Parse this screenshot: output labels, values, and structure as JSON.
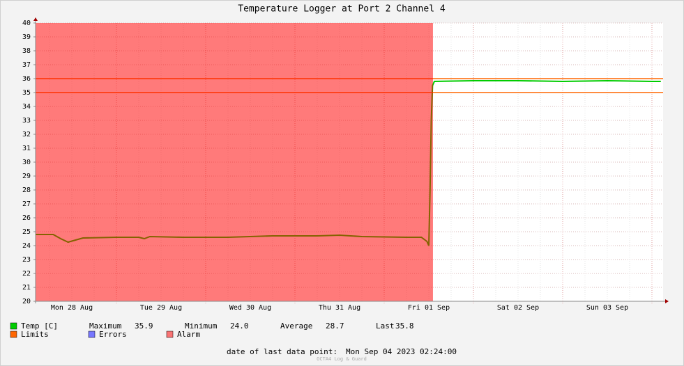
{
  "chart_data": {
    "type": "line",
    "title": "Temperature Logger at Port 2 Channel 4",
    "x": [
      "2023-08-28T02:15",
      "2023-08-28T07:00",
      "2023-08-28T09:00",
      "2023-08-28T11:00",
      "2023-08-28T13:00",
      "2023-08-28T15:00",
      "2023-08-29T00:00",
      "2023-08-29T06:00",
      "2023-08-29T07:30",
      "2023-08-29T09:00",
      "2023-08-29T18:00",
      "2023-08-30T06:00",
      "2023-08-30T18:00",
      "2023-08-31T06:00",
      "2023-08-31T12:00",
      "2023-08-31T18:00",
      "2023-09-01T06:00",
      "2023-09-01T10:00",
      "2023-09-01T11:30",
      "2023-09-01T12:00",
      "2023-09-01T12:20",
      "2023-09-01T12:40",
      "2023-09-01T13:00",
      "2023-09-01T13:30",
      "2023-09-02T00:00",
      "2023-09-02T12:00",
      "2023-09-03T00:00",
      "2023-09-03T12:00",
      "2023-09-04T00:00",
      "2023-09-04T02:24"
    ],
    "series": [
      {
        "name": "Temp [C]",
        "color": "#00cc00",
        "values": [
          24.8,
          24.8,
          24.5,
          24.25,
          24.4,
          24.55,
          24.6,
          24.6,
          24.5,
          24.65,
          24.6,
          24.6,
          24.7,
          24.7,
          24.75,
          24.65,
          24.6,
          24.6,
          24.3,
          24.0,
          28.0,
          33.0,
          35.5,
          35.8,
          35.85,
          35.85,
          35.8,
          35.85,
          35.8,
          35.8
        ]
      }
    ],
    "limits": {
      "name": "Limits",
      "color": "#ff6600",
      "values": [
        35,
        36
      ]
    },
    "errors": {
      "name": "Errors",
      "color": "#7777ff"
    },
    "alarm": {
      "name": "Alarm",
      "color": "#ff0000",
      "periods": [
        [
          "2023-08-28T02:15",
          "2023-09-01T13:07"
        ]
      ]
    },
    "xlim": [
      "2023-08-28T02:15",
      "2023-09-04T03:00"
    ],
    "xticks": [
      {
        "value": "2023-08-28T12:00",
        "label": "Mon 28 Aug"
      },
      {
        "value": "2023-08-29T12:00",
        "label": "Tue 29 Aug"
      },
      {
        "value": "2023-08-30T12:00",
        "label": "Wed 30 Aug"
      },
      {
        "value": "2023-08-31T12:00",
        "label": "Thu 31 Aug"
      },
      {
        "value": "2023-09-01T12:00",
        "label": "Fri 01 Sep"
      },
      {
        "value": "2023-09-02T12:00",
        "label": "Sat 02 Sep"
      },
      {
        "value": "2023-09-03T12:00",
        "label": "Sun 03 Sep"
      }
    ],
    "ylim": [
      20,
      40
    ],
    "yticks": [
      20,
      21,
      22,
      23,
      24,
      25,
      26,
      27,
      28,
      29,
      30,
      31,
      32,
      33,
      34,
      35,
      36,
      37,
      38,
      39,
      40
    ],
    "grid": true,
    "stats": [
      {
        "name": "Maximum",
        "value": 35.9
      },
      {
        "name": "Minimum",
        "value": 24,
        "label": "24.0"
      },
      {
        "name": "Average",
        "value": 28.7
      },
      {
        "name": "Last",
        "value": 35.8
      }
    ],
    "footer": {
      "label": "date of last data point:",
      "value": "Mon Sep 04 2023 02:24:00"
    },
    "credit": "OCTA4 Log & Guard"
  }
}
